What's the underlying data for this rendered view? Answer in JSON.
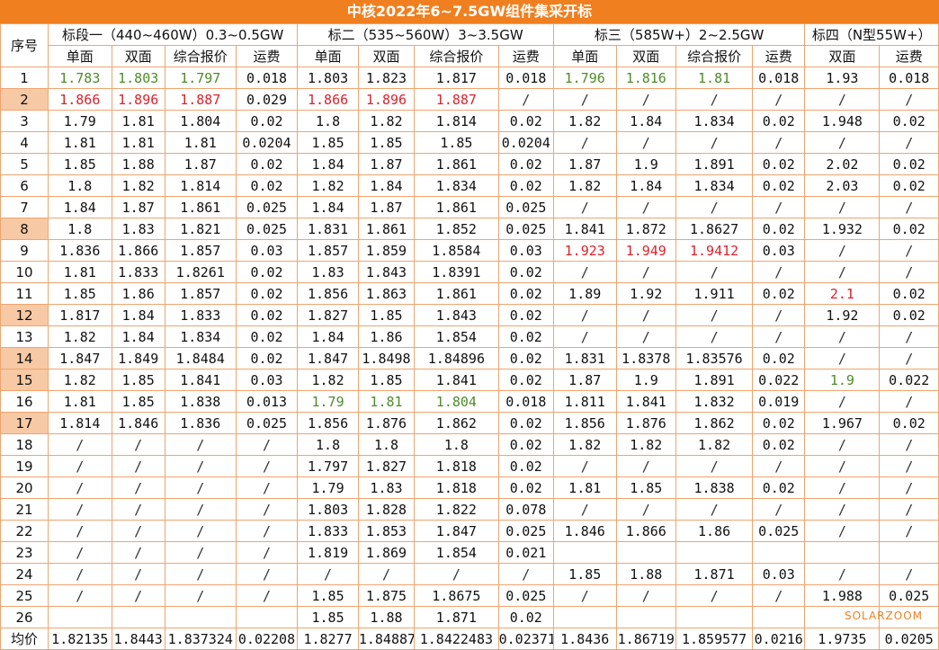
{
  "title": "中核2022年6~7.5GW组件集采开标",
  "header": {
    "index_label": "序号",
    "groups": [
      "标段一（440~460W）0.3~0.5GW",
      "标二（535~560W）3~3.5GW",
      "标三（585W+）2~2.5GW",
      "标四（N型55W+）"
    ],
    "sub": [
      "单面",
      "双面",
      "综合报价",
      "运费",
      "单面",
      "双面",
      "综合报价",
      "运费",
      "单面",
      "双面",
      "综合报价",
      "运费",
      "双面",
      "运费"
    ]
  },
  "rows": [
    {
      "idx": "1",
      "hl": false,
      "cells": [
        {
          "v": "1.783",
          "c": "green"
        },
        {
          "v": "1.803",
          "c": "green"
        },
        {
          "v": "1.797",
          "c": "green"
        },
        {
          "v": "0.018"
        },
        {
          "v": "1.803"
        },
        {
          "v": "1.823"
        },
        {
          "v": "1.817"
        },
        {
          "v": "0.018"
        },
        {
          "v": "1.796",
          "c": "green"
        },
        {
          "v": "1.816",
          "c": "green"
        },
        {
          "v": "1.81",
          "c": "green"
        },
        {
          "v": "0.018"
        },
        {
          "v": "1.93"
        },
        {
          "v": "0.018"
        }
      ]
    },
    {
      "idx": "2",
      "hl": true,
      "cells": [
        {
          "v": "1.866",
          "c": "red"
        },
        {
          "v": "1.896",
          "c": "red"
        },
        {
          "v": "1.887",
          "c": "red"
        },
        {
          "v": "0.029"
        },
        {
          "v": "1.866",
          "c": "red"
        },
        {
          "v": "1.896",
          "c": "red"
        },
        {
          "v": "1.887",
          "c": "red"
        },
        {
          "v": "/"
        },
        {
          "v": "/"
        },
        {
          "v": "/"
        },
        {
          "v": "/"
        },
        {
          "v": "/"
        },
        {
          "v": "/"
        },
        {
          "v": "/"
        }
      ]
    },
    {
      "idx": "3",
      "hl": false,
      "cells": [
        {
          "v": "1.79"
        },
        {
          "v": "1.81"
        },
        {
          "v": "1.804"
        },
        {
          "v": "0.02"
        },
        {
          "v": "1.8"
        },
        {
          "v": "1.82"
        },
        {
          "v": "1.814"
        },
        {
          "v": "0.02"
        },
        {
          "v": "1.82"
        },
        {
          "v": "1.84"
        },
        {
          "v": "1.834"
        },
        {
          "v": "0.02"
        },
        {
          "v": "1.948"
        },
        {
          "v": "0.02"
        }
      ]
    },
    {
      "idx": "4",
      "hl": false,
      "cells": [
        {
          "v": "1.81"
        },
        {
          "v": "1.81"
        },
        {
          "v": "1.81"
        },
        {
          "v": "0.0204"
        },
        {
          "v": "1.85"
        },
        {
          "v": "1.85"
        },
        {
          "v": "1.85"
        },
        {
          "v": "0.0204"
        },
        {
          "v": "/"
        },
        {
          "v": "/"
        },
        {
          "v": "/"
        },
        {
          "v": "/"
        },
        {
          "v": "/"
        },
        {
          "v": "/"
        }
      ]
    },
    {
      "idx": "5",
      "hl": false,
      "cells": [
        {
          "v": "1.85"
        },
        {
          "v": "1.88"
        },
        {
          "v": "1.87"
        },
        {
          "v": "0.02"
        },
        {
          "v": "1.84"
        },
        {
          "v": "1.87"
        },
        {
          "v": "1.861"
        },
        {
          "v": "0.02"
        },
        {
          "v": "1.87"
        },
        {
          "v": "1.9"
        },
        {
          "v": "1.891"
        },
        {
          "v": "0.02"
        },
        {
          "v": "2.02"
        },
        {
          "v": "0.02"
        }
      ]
    },
    {
      "idx": "6",
      "hl": false,
      "cells": [
        {
          "v": "1.8"
        },
        {
          "v": "1.82"
        },
        {
          "v": "1.814"
        },
        {
          "v": "0.02"
        },
        {
          "v": "1.82"
        },
        {
          "v": "1.84"
        },
        {
          "v": "1.834"
        },
        {
          "v": "0.02"
        },
        {
          "v": "1.82"
        },
        {
          "v": "1.84"
        },
        {
          "v": "1.834"
        },
        {
          "v": "0.02"
        },
        {
          "v": "2.03"
        },
        {
          "v": "0.02"
        }
      ]
    },
    {
      "idx": "7",
      "hl": false,
      "cells": [
        {
          "v": "1.84"
        },
        {
          "v": "1.87"
        },
        {
          "v": "1.861"
        },
        {
          "v": "0.025"
        },
        {
          "v": "1.84"
        },
        {
          "v": "1.87"
        },
        {
          "v": "1.861"
        },
        {
          "v": "0.025"
        },
        {
          "v": "/"
        },
        {
          "v": "/"
        },
        {
          "v": "/"
        },
        {
          "v": "/"
        },
        {
          "v": "/"
        },
        {
          "v": "/"
        }
      ]
    },
    {
      "idx": "8",
      "hl": true,
      "cells": [
        {
          "v": "1.8"
        },
        {
          "v": "1.83"
        },
        {
          "v": "1.821"
        },
        {
          "v": "0.025"
        },
        {
          "v": "1.831"
        },
        {
          "v": "1.861"
        },
        {
          "v": "1.852"
        },
        {
          "v": "0.025"
        },
        {
          "v": "1.841"
        },
        {
          "v": "1.872"
        },
        {
          "v": "1.8627"
        },
        {
          "v": "0.02"
        },
        {
          "v": "1.932"
        },
        {
          "v": "0.02"
        }
      ]
    },
    {
      "idx": "9",
      "hl": false,
      "cells": [
        {
          "v": "1.836"
        },
        {
          "v": "1.866"
        },
        {
          "v": "1.857"
        },
        {
          "v": "0.03"
        },
        {
          "v": "1.857"
        },
        {
          "v": "1.859"
        },
        {
          "v": "1.8584"
        },
        {
          "v": "0.03"
        },
        {
          "v": "1.923",
          "c": "red"
        },
        {
          "v": "1.949",
          "c": "red"
        },
        {
          "v": "1.9412",
          "c": "red"
        },
        {
          "v": "0.03"
        },
        {
          "v": "/"
        },
        {
          "v": "/"
        }
      ]
    },
    {
      "idx": "10",
      "hl": false,
      "cells": [
        {
          "v": "1.81"
        },
        {
          "v": "1.833"
        },
        {
          "v": "1.8261"
        },
        {
          "v": "0.02"
        },
        {
          "v": "1.83"
        },
        {
          "v": "1.843"
        },
        {
          "v": "1.8391"
        },
        {
          "v": "0.02"
        },
        {
          "v": "/"
        },
        {
          "v": "/"
        },
        {
          "v": "/"
        },
        {
          "v": "/"
        },
        {
          "v": "/"
        },
        {
          "v": "/"
        }
      ]
    },
    {
      "idx": "11",
      "hl": false,
      "cells": [
        {
          "v": "1.85"
        },
        {
          "v": "1.86"
        },
        {
          "v": "1.857"
        },
        {
          "v": "0.02"
        },
        {
          "v": "1.856"
        },
        {
          "v": "1.863"
        },
        {
          "v": "1.861"
        },
        {
          "v": "0.02"
        },
        {
          "v": "1.89"
        },
        {
          "v": "1.92"
        },
        {
          "v": "1.911"
        },
        {
          "v": "0.02"
        },
        {
          "v": "2.1",
          "c": "red"
        },
        {
          "v": "0.02"
        }
      ]
    },
    {
      "idx": "12",
      "hl": true,
      "cells": [
        {
          "v": "1.817"
        },
        {
          "v": "1.84"
        },
        {
          "v": "1.833"
        },
        {
          "v": "0.02"
        },
        {
          "v": "1.827"
        },
        {
          "v": "1.85"
        },
        {
          "v": "1.843"
        },
        {
          "v": "0.02"
        },
        {
          "v": "/"
        },
        {
          "v": "/"
        },
        {
          "v": "/"
        },
        {
          "v": "/"
        },
        {
          "v": "1.92"
        },
        {
          "v": "0.02"
        }
      ]
    },
    {
      "idx": "13",
      "hl": false,
      "cells": [
        {
          "v": "1.82"
        },
        {
          "v": "1.84"
        },
        {
          "v": "1.834"
        },
        {
          "v": "0.02"
        },
        {
          "v": "1.84"
        },
        {
          "v": "1.86"
        },
        {
          "v": "1.854"
        },
        {
          "v": "0.02"
        },
        {
          "v": "/"
        },
        {
          "v": "/"
        },
        {
          "v": "/"
        },
        {
          "v": "/"
        },
        {
          "v": "/"
        },
        {
          "v": "/"
        }
      ]
    },
    {
      "idx": "14",
      "hl": true,
      "cells": [
        {
          "v": "1.847"
        },
        {
          "v": "1.849"
        },
        {
          "v": "1.8484"
        },
        {
          "v": "0.02"
        },
        {
          "v": "1.847"
        },
        {
          "v": "1.8498"
        },
        {
          "v": "1.84896"
        },
        {
          "v": "0.02"
        },
        {
          "v": "1.831"
        },
        {
          "v": "1.8378"
        },
        {
          "v": "1.83576"
        },
        {
          "v": "0.02"
        },
        {
          "v": "/"
        },
        {
          "v": "/"
        }
      ]
    },
    {
      "idx": "15",
      "hl": true,
      "cells": [
        {
          "v": "1.82"
        },
        {
          "v": "1.85"
        },
        {
          "v": "1.841"
        },
        {
          "v": "0.03"
        },
        {
          "v": "1.82"
        },
        {
          "v": "1.85"
        },
        {
          "v": "1.841"
        },
        {
          "v": "0.02"
        },
        {
          "v": "1.87"
        },
        {
          "v": "1.9"
        },
        {
          "v": "1.891"
        },
        {
          "v": "0.022"
        },
        {
          "v": "1.9",
          "c": "green"
        },
        {
          "v": "0.022"
        }
      ]
    },
    {
      "idx": "16",
      "hl": false,
      "cells": [
        {
          "v": "1.81"
        },
        {
          "v": "1.85"
        },
        {
          "v": "1.838"
        },
        {
          "v": "0.013"
        },
        {
          "v": "1.79",
          "c": "green"
        },
        {
          "v": "1.81",
          "c": "green"
        },
        {
          "v": "1.804",
          "c": "green"
        },
        {
          "v": "0.018"
        },
        {
          "v": "1.811"
        },
        {
          "v": "1.841"
        },
        {
          "v": "1.832"
        },
        {
          "v": "0.019"
        },
        {
          "v": "/"
        },
        {
          "v": "/"
        }
      ]
    },
    {
      "idx": "17",
      "hl": true,
      "cells": [
        {
          "v": "1.814"
        },
        {
          "v": "1.846"
        },
        {
          "v": "1.836"
        },
        {
          "v": "0.025"
        },
        {
          "v": "1.856"
        },
        {
          "v": "1.876"
        },
        {
          "v": "1.862"
        },
        {
          "v": "0.02"
        },
        {
          "v": "1.856"
        },
        {
          "v": "1.876"
        },
        {
          "v": "1.862"
        },
        {
          "v": "0.02"
        },
        {
          "v": "1.967"
        },
        {
          "v": "0.02"
        }
      ]
    },
    {
      "idx": "18",
      "hl": false,
      "cells": [
        {
          "v": "/"
        },
        {
          "v": "/"
        },
        {
          "v": "/"
        },
        {
          "v": "/"
        },
        {
          "v": "1.8"
        },
        {
          "v": "1.8"
        },
        {
          "v": "1.8"
        },
        {
          "v": "0.02"
        },
        {
          "v": "1.82"
        },
        {
          "v": "1.82"
        },
        {
          "v": "1.82"
        },
        {
          "v": "0.02"
        },
        {
          "v": "/"
        },
        {
          "v": "/"
        }
      ]
    },
    {
      "idx": "19",
      "hl": false,
      "cells": [
        {
          "v": "/"
        },
        {
          "v": "/"
        },
        {
          "v": "/"
        },
        {
          "v": "/"
        },
        {
          "v": "1.797"
        },
        {
          "v": "1.827"
        },
        {
          "v": "1.818"
        },
        {
          "v": "0.02"
        },
        {
          "v": "/"
        },
        {
          "v": "/"
        },
        {
          "v": "/"
        },
        {
          "v": "/"
        },
        {
          "v": "/"
        },
        {
          "v": "/"
        }
      ]
    },
    {
      "idx": "20",
      "hl": false,
      "cells": [
        {
          "v": "/"
        },
        {
          "v": "/"
        },
        {
          "v": "/"
        },
        {
          "v": "/"
        },
        {
          "v": "1.79"
        },
        {
          "v": "1.83"
        },
        {
          "v": "1.818"
        },
        {
          "v": "0.02"
        },
        {
          "v": "1.81"
        },
        {
          "v": "1.85"
        },
        {
          "v": "1.838"
        },
        {
          "v": "0.02"
        },
        {
          "v": "/"
        },
        {
          "v": "/"
        }
      ]
    },
    {
      "idx": "21",
      "hl": false,
      "cells": [
        {
          "v": "/"
        },
        {
          "v": "/"
        },
        {
          "v": "/"
        },
        {
          "v": "/"
        },
        {
          "v": "1.803"
        },
        {
          "v": "1.828"
        },
        {
          "v": "1.822"
        },
        {
          "v": "0.078"
        },
        {
          "v": "/"
        },
        {
          "v": "/"
        },
        {
          "v": "/"
        },
        {
          "v": "/"
        },
        {
          "v": "/"
        },
        {
          "v": "/"
        }
      ]
    },
    {
      "idx": "22",
      "hl": false,
      "cells": [
        {
          "v": "/"
        },
        {
          "v": "/"
        },
        {
          "v": "/"
        },
        {
          "v": "/"
        },
        {
          "v": "1.833"
        },
        {
          "v": "1.853"
        },
        {
          "v": "1.847"
        },
        {
          "v": "0.025"
        },
        {
          "v": "1.846"
        },
        {
          "v": "1.866"
        },
        {
          "v": "1.86"
        },
        {
          "v": "0.025"
        },
        {
          "v": "/"
        },
        {
          "v": "/"
        }
      ]
    },
    {
      "idx": "23",
      "hl": false,
      "cells": [
        {
          "v": "/"
        },
        {
          "v": "/"
        },
        {
          "v": "/"
        },
        {
          "v": "/"
        },
        {
          "v": "1.819"
        },
        {
          "v": "1.869"
        },
        {
          "v": "1.854"
        },
        {
          "v": "0.021"
        },
        {
          "v": ""
        },
        {
          "v": ""
        },
        {
          "v": ""
        },
        {
          "v": ""
        },
        {
          "v": ""
        },
        {
          "v": ""
        }
      ]
    },
    {
      "idx": "24",
      "hl": false,
      "cells": [
        {
          "v": "/"
        },
        {
          "v": "/"
        },
        {
          "v": "/"
        },
        {
          "v": "/"
        },
        {
          "v": "/"
        },
        {
          "v": "/"
        },
        {
          "v": "/"
        },
        {
          "v": "/"
        },
        {
          "v": "1.85"
        },
        {
          "v": "1.88"
        },
        {
          "v": "1.871"
        },
        {
          "v": "0.03"
        },
        {
          "v": "/"
        },
        {
          "v": "/"
        }
      ]
    },
    {
      "idx": "25",
      "hl": false,
      "cells": [
        {
          "v": "/"
        },
        {
          "v": "/"
        },
        {
          "v": "/"
        },
        {
          "v": "/"
        },
        {
          "v": "1.85"
        },
        {
          "v": "1.875"
        },
        {
          "v": "1.8675"
        },
        {
          "v": "0.025"
        },
        {
          "v": "/"
        },
        {
          "v": "/"
        },
        {
          "v": "/"
        },
        {
          "v": "/"
        },
        {
          "v": "1.988"
        },
        {
          "v": "0.025"
        }
      ]
    },
    {
      "idx": "26",
      "hl": false,
      "cells": [
        {
          "v": ""
        },
        {
          "v": ""
        },
        {
          "v": ""
        },
        {
          "v": ""
        },
        {
          "v": "1.85"
        },
        {
          "v": "1.88"
        },
        {
          "v": "1.871"
        },
        {
          "v": "0.02"
        },
        {
          "v": ""
        },
        {
          "v": ""
        },
        {
          "v": ""
        },
        {
          "v": ""
        },
        {
          "v": ""
        },
        {
          "v": ""
        }
      ]
    },
    {
      "idx": "均价",
      "hl": false,
      "cells": [
        {
          "v": "1.82135"
        },
        {
          "v": "1.8443"
        },
        {
          "v": "1.837324"
        },
        {
          "v": "0.02208"
        },
        {
          "v": "1.8277"
        },
        {
          "v": "1.84887"
        },
        {
          "v": "1.8422483"
        },
        {
          "v": "0.02371"
        },
        {
          "v": "1.8436"
        },
        {
          "v": "1.86719"
        },
        {
          "v": "1.859577"
        },
        {
          "v": "0.0216"
        },
        {
          "v": "1.9735"
        },
        {
          "v": "0.0205"
        }
      ]
    }
  ],
  "watermark": "SOLARZOOM",
  "colors": {
    "header_orange": "#f07f1f",
    "highlight": "#f8c9a5",
    "red": "#e0202a",
    "green": "#4d8c2a",
    "border": "#f0a46e"
  }
}
